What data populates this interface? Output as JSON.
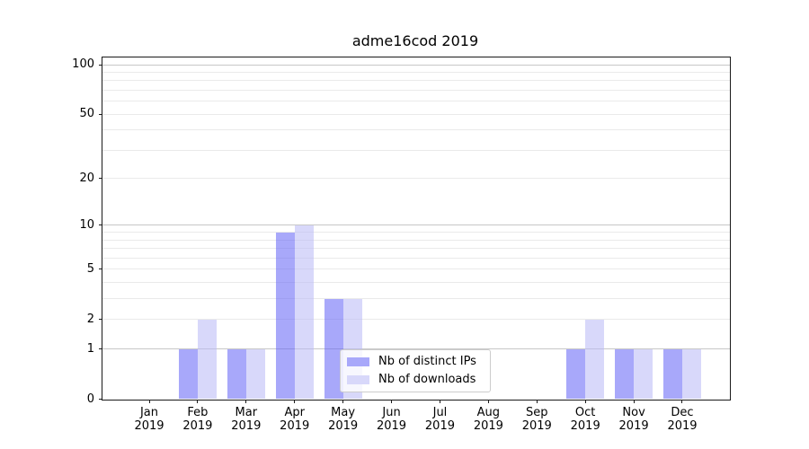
{
  "title": "adme16cod 2019",
  "chart_data": {
    "type": "bar",
    "title": "adme16cod 2019",
    "categories": [
      "Jan",
      "Feb",
      "Mar",
      "Apr",
      "May",
      "Jun",
      "Jul",
      "Aug",
      "Sep",
      "Oct",
      "Nov",
      "Dec"
    ],
    "x_year_label": "2019",
    "series": [
      {
        "name": "Nb of distinct IPs",
        "color": "#a8a8fa",
        "values": [
          0,
          1,
          1,
          9,
          3,
          0,
          0,
          0,
          0,
          1,
          1,
          1
        ]
      },
      {
        "name": "Nb of downloads",
        "color": "#d8d8fa",
        "values": [
          0,
          2,
          1,
          10,
          3,
          0,
          0,
          0,
          0,
          2,
          1,
          1
        ]
      }
    ],
    "yscale": "log1p",
    "ylim": [
      0,
      110
    ],
    "xlabel": "",
    "ylabel": "",
    "y_ticks": [
      0,
      1,
      2,
      5,
      10,
      20,
      50,
      100
    ],
    "grid_major": [
      1,
      10,
      100
    ],
    "grid_minor": [
      2,
      3,
      4,
      5,
      6,
      7,
      8,
      9,
      20,
      30,
      40,
      50,
      60,
      70,
      80,
      90
    ],
    "grid": "on",
    "legend_position": "lower center",
    "colors": {
      "bar_distinct_ips": "#a8a8fa",
      "bar_downloads": "#d8d8fa",
      "grid_major": "#c7c7c7",
      "grid_minor": "#eaeaea",
      "axis": "#1a1a1a",
      "legend_border": "#cccccc"
    }
  }
}
